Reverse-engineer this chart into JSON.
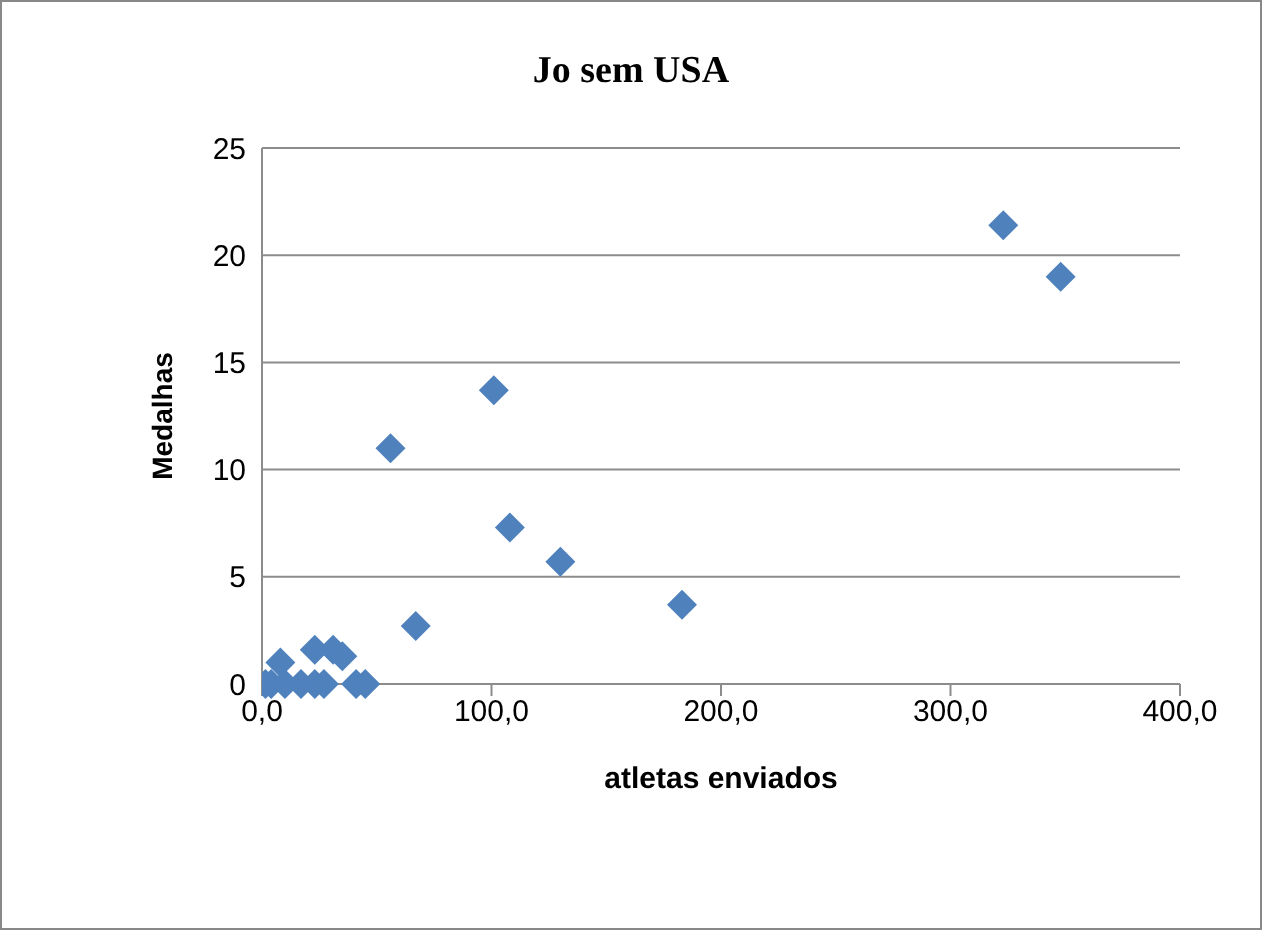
{
  "chart_data": {
    "type": "scatter",
    "title": "Jo sem USA",
    "xlabel": "atletas enviados",
    "ylabel": "Medalhas",
    "x": [
      323,
      348,
      101,
      56,
      108,
      130,
      183,
      67,
      8,
      23,
      31,
      35,
      1.5,
      4,
      10,
      17,
      23,
      27,
      41,
      45
    ],
    "series": [
      {
        "color": "#4f81bd",
        "values": [
          21.4,
          19.0,
          13.7,
          11.0,
          7.3,
          5.7,
          3.7,
          2.7,
          1.0,
          1.6,
          1.6,
          1.3,
          0,
          0,
          0,
          0,
          0,
          0,
          0,
          0
        ]
      }
    ],
    "xlim": [
      0,
      400
    ],
    "xticks": [
      {
        "value": 0,
        "label": "0,0"
      },
      {
        "value": 100,
        "label": "100,0"
      },
      {
        "value": 200,
        "label": "200,0"
      },
      {
        "value": 300,
        "label": "300,0"
      },
      {
        "value": 400,
        "label": "400,0"
      }
    ],
    "ylim": [
      0,
      25
    ],
    "yticks": [
      0,
      5,
      10,
      15,
      20,
      25
    ],
    "grid": "y",
    "marker": "diamond"
  }
}
